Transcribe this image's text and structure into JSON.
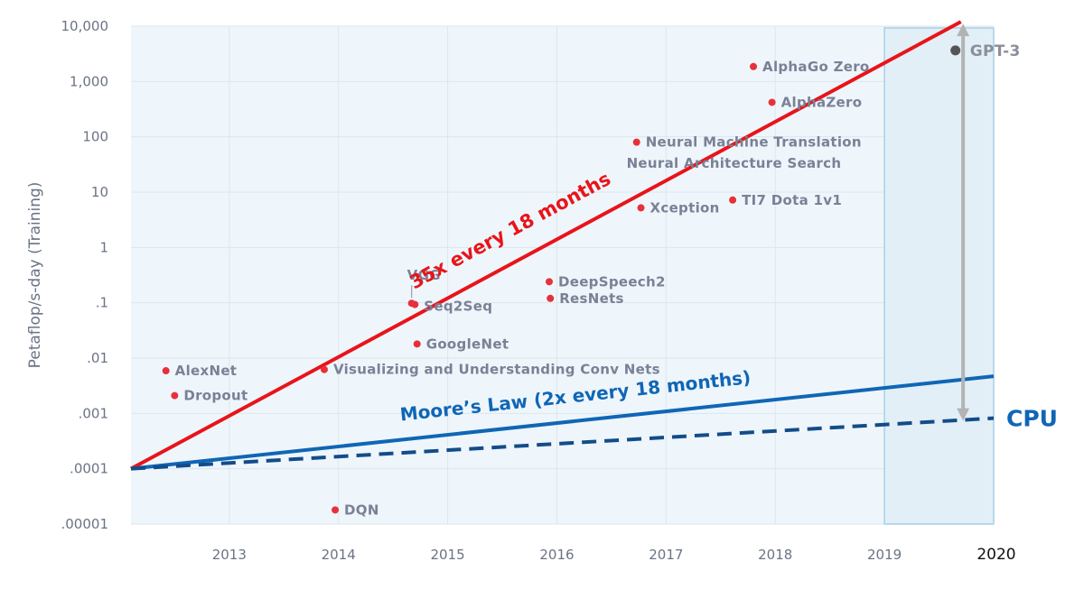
{
  "chart_data": {
    "type": "scatter",
    "title": "",
    "ylabel": "Petaflop/s-day (Training)",
    "xlabel": "",
    "yscale": "log",
    "ylim": [
      1e-05,
      10000
    ],
    "xlim": [
      2012.1,
      2020.0
    ],
    "y_ticks": [
      {
        "value": 10000,
        "label": "10,000"
      },
      {
        "value": 1000,
        "label": "1,000"
      },
      {
        "value": 100,
        "label": "100"
      },
      {
        "value": 10,
        "label": "10"
      },
      {
        "value": 1,
        "label": "1"
      },
      {
        "value": 0.1,
        "label": ".1"
      },
      {
        "value": 0.01,
        "label": ".01"
      },
      {
        "value": 0.001,
        "label": ".001"
      },
      {
        "value": 0.0001,
        "label": ".0001"
      },
      {
        "value": 1e-05,
        "label": ".00001"
      }
    ],
    "x_ticks": [
      {
        "value": 2013,
        "label": "2013"
      },
      {
        "value": 2014,
        "label": "2014"
      },
      {
        "value": 2015,
        "label": "2015"
      },
      {
        "value": 2016,
        "label": "2016"
      },
      {
        "value": 2017,
        "label": "2017"
      },
      {
        "value": 2018,
        "label": "2018"
      },
      {
        "value": 2019,
        "label": "2019"
      }
    ],
    "highlight_year": {
      "value": 2020,
      "label": "2020"
    },
    "shaded_region": {
      "x_start": 2019.0,
      "x_end": 2020.0
    },
    "points": [
      {
        "name": "AlexNet",
        "x": 2012.42,
        "y": 0.0059,
        "color": "#e8303a"
      },
      {
        "name": "Dropout",
        "x": 2012.5,
        "y": 0.0021,
        "color": "#e8303a"
      },
      {
        "name": "DQN",
        "x": 2013.97,
        "y": 1.8e-05,
        "color": "#e8303a"
      },
      {
        "name": "Visualizing and Understanding Conv Nets",
        "x": 2013.87,
        "y": 0.0062,
        "color": "#e8303a"
      },
      {
        "name": "VGG",
        "x": 2014.67,
        "y": 0.098,
        "color": "#e8303a"
      },
      {
        "name": "Seq2Seq",
        "x": 2014.7,
        "y": 0.093,
        "color": "#e8303a"
      },
      {
        "name": "GoogleNet",
        "x": 2014.72,
        "y": 0.018,
        "color": "#e8303a"
      },
      {
        "name": "DeepSpeech2",
        "x": 2015.93,
        "y": 0.24,
        "color": "#e8303a"
      },
      {
        "name": "ResNets",
        "x": 2015.94,
        "y": 0.12,
        "color": "#e8303a"
      },
      {
        "name": "Neural Machine Translation",
        "x": 2016.73,
        "y": 80,
        "color": "#e8303a"
      },
      {
        "name": "Neural Architecture Search",
        "x": 2016.82,
        "y": 33,
        "color": "#e8303a"
      },
      {
        "name": "Xception",
        "x": 2016.77,
        "y": 5.2,
        "color": "#e8303a"
      },
      {
        "name": "TI7 Dota 1v1",
        "x": 2017.61,
        "y": 7.2,
        "color": "#e8303a"
      },
      {
        "name": "AlphaGo Zero",
        "x": 2017.8,
        "y": 1860,
        "color": "#e8303a"
      },
      {
        "name": "AlphaZero",
        "x": 2017.97,
        "y": 420,
        "color": "#e8303a"
      },
      {
        "name": "GPT-3",
        "x": 2019.65,
        "y": 3640,
        "color": "#555555"
      }
    ],
    "series": [
      {
        "name": "35x every 18 months",
        "style": "solid",
        "color": "#e8141a",
        "x": [
          2012.1,
          2019.7
        ],
        "y": [
          0.0001,
          12000
        ]
      },
      {
        "name": "Moore’s Law (2x every 18 months)",
        "style": "solid",
        "color": "#1066b5",
        "x": [
          2012.1,
          2020.0
        ],
        "y": [
          0.0001,
          0.0047
        ]
      },
      {
        "name": "CPU",
        "style": "dashed",
        "color": "#134c8a",
        "x": [
          2012.1,
          2020.0
        ],
        "y": [
          0.0001,
          0.00082
        ]
      }
    ],
    "gap_arrow": {
      "x": 2019.72,
      "y_top": 12000,
      "y_bottom": 0.00068,
      "color": "#b3b3b3"
    },
    "annotations": [
      {
        "text": "35x every 18 months",
        "color": "#e8141a",
        "x": 2015.6,
        "y": 1.6
      },
      {
        "text": "Moore’s Law (2x every 18 months)",
        "color": "#1066b5",
        "x": 2015.1,
        "y": 0.0016
      },
      {
        "text": "CPU",
        "color": "#1066b5",
        "x": 2020.1,
        "y": 0.00082
      }
    ]
  }
}
